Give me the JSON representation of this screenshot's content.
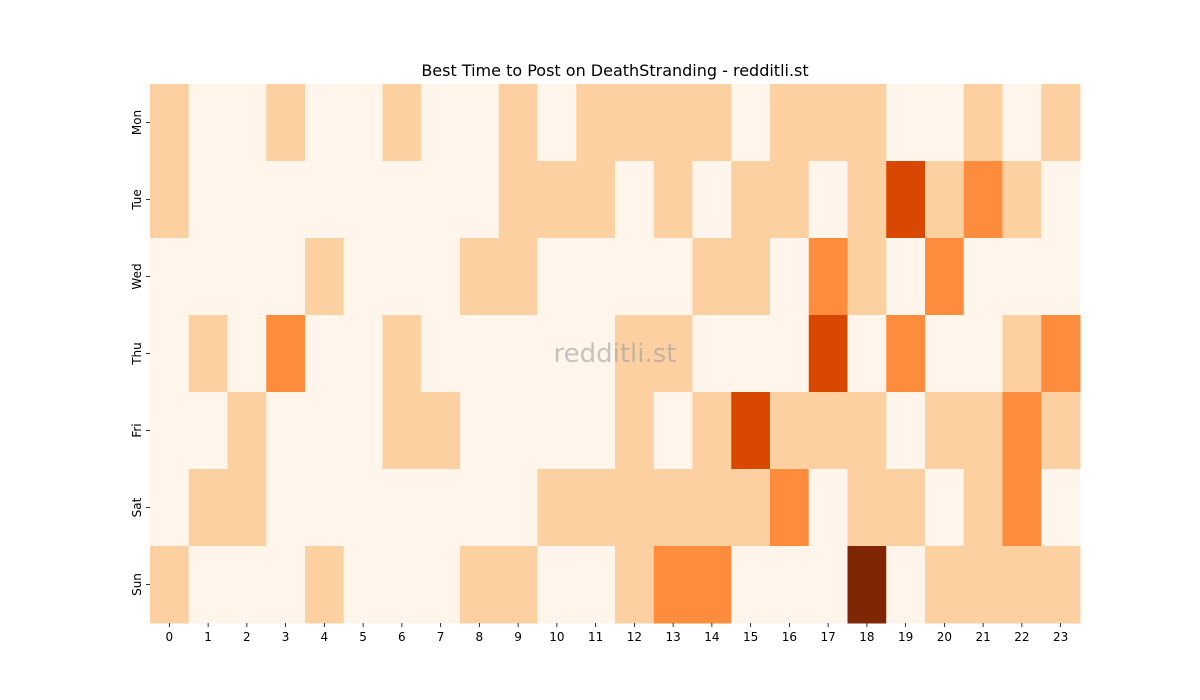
{
  "chart_data": {
    "type": "heatmap",
    "title": "Best Time to Post on DeathStranding - redditli.st",
    "watermark": "redditli.st",
    "xlabel": "",
    "ylabel": "",
    "x_categories": [
      "0",
      "1",
      "2",
      "3",
      "4",
      "5",
      "6",
      "7",
      "8",
      "9",
      "10",
      "11",
      "12",
      "13",
      "14",
      "15",
      "16",
      "17",
      "18",
      "19",
      "20",
      "21",
      "22",
      "23"
    ],
    "y_categories": [
      "Mon",
      "Tue",
      "Wed",
      "Thu",
      "Fri",
      "Sat",
      "Sun"
    ],
    "levels": [
      [
        1,
        0,
        0,
        1,
        0,
        0,
        1,
        0,
        0,
        1,
        0,
        1,
        1,
        1,
        1,
        0,
        1,
        1,
        1,
        0,
        0,
        1,
        0,
        1
      ],
      [
        1,
        0,
        0,
        0,
        0,
        0,
        0,
        0,
        0,
        1,
        1,
        1,
        0,
        1,
        0,
        1,
        1,
        0,
        1,
        4,
        1,
        2,
        1,
        0
      ],
      [
        0,
        0,
        0,
        0,
        1,
        0,
        0,
        0,
        1,
        1,
        0,
        0,
        0,
        0,
        1,
        1,
        0,
        2,
        1,
        0,
        2,
        0,
        0,
        0
      ],
      [
        0,
        1,
        0,
        2,
        0,
        0,
        1,
        0,
        0,
        0,
        0,
        0,
        1,
        1,
        0,
        0,
        0,
        4,
        0,
        2,
        0,
        0,
        1,
        2
      ],
      [
        0,
        0,
        1,
        0,
        0,
        0,
        1,
        1,
        0,
        0,
        0,
        0,
        1,
        0,
        1,
        4,
        1,
        1,
        1,
        0,
        1,
        1,
        2,
        1
      ],
      [
        0,
        1,
        1,
        0,
        0,
        0,
        0,
        0,
        0,
        0,
        1,
        1,
        1,
        1,
        1,
        1,
        2,
        0,
        1,
        1,
        0,
        1,
        2,
        0
      ],
      [
        1,
        0,
        0,
        0,
        1,
        0,
        0,
        0,
        1,
        1,
        0,
        0,
        1,
        2,
        2,
        0,
        0,
        0,
        5,
        0,
        1,
        1,
        1,
        1
      ]
    ],
    "level_colors": [
      "#fff5eb",
      "#fdd0a2",
      "#fdae6b",
      "#fd8d3c",
      "#f16913",
      "#d94801",
      "#7f2704"
    ],
    "level_color_index": [
      0,
      1,
      3,
      3,
      5,
      6
    ],
    "legend": "none",
    "grid": false
  }
}
